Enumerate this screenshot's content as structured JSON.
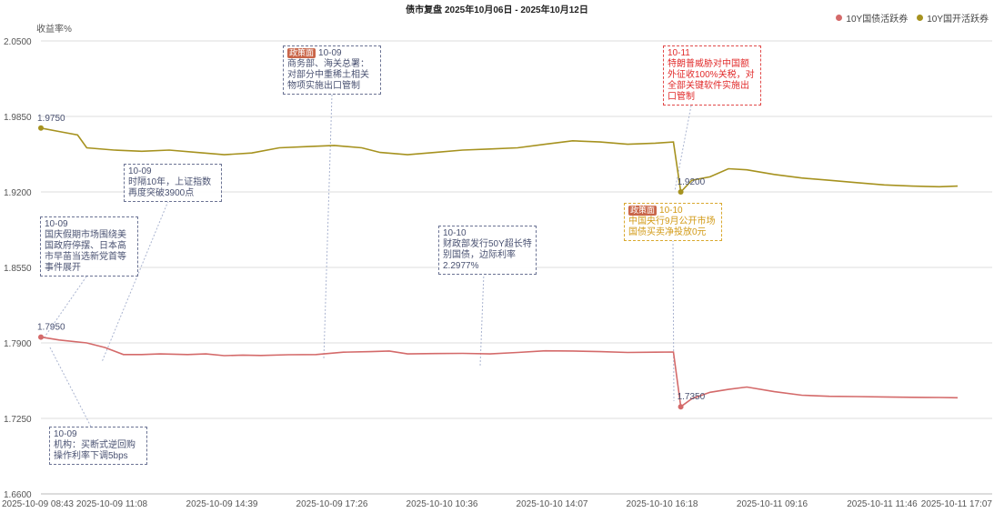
{
  "chart_data": {
    "type": "line",
    "title": "债市复盘 2025年10月06日 - 2025年10月12日",
    "ylabel": "收益率%",
    "ylim": [
      1.66,
      2.05
    ],
    "yticks": [
      "2.0500",
      "1.9850",
      "1.9200",
      "1.8550",
      "1.7900",
      "1.7250",
      "1.6600"
    ],
    "ytick_values": [
      2.05,
      1.985,
      1.92,
      1.855,
      1.79,
      1.725,
      1.66
    ],
    "xtick_labels": [
      "2025-10-09 08:43",
      "2025-10-09 11:08",
      "2025-10-09 14:39",
      "2025-10-09 17:26",
      "2025-10-10 10:36",
      "2025-10-10 14:07",
      "2025-10-10 16:18",
      "2025-10-11 09:16",
      "2025-10-11 11:46",
      "2025-10-11 17:07"
    ],
    "grid": true,
    "legend_position": "top-right",
    "series": [
      {
        "name": "10Y国债活跃券",
        "color": "#d46a6a",
        "values": [
          [
            0.0,
            1.795
          ],
          [
            0.02,
            1.7925
          ],
          [
            0.05,
            1.79
          ],
          [
            0.07,
            1.786
          ],
          [
            0.09,
            1.78
          ],
          [
            0.11,
            1.78
          ],
          [
            0.13,
            1.7805
          ],
          [
            0.16,
            1.78
          ],
          [
            0.18,
            1.7805
          ],
          [
            0.2,
            1.779
          ],
          [
            0.22,
            1.7795
          ],
          [
            0.24,
            1.7792
          ],
          [
            0.27,
            1.7798
          ],
          [
            0.3,
            1.78
          ],
          [
            0.33,
            1.782
          ],
          [
            0.36,
            1.7825
          ],
          [
            0.38,
            1.783
          ],
          [
            0.4,
            1.7805
          ],
          [
            0.43,
            1.7808
          ],
          [
            0.46,
            1.781
          ],
          [
            0.49,
            1.7805
          ],
          [
            0.52,
            1.7818
          ],
          [
            0.55,
            1.7832
          ],
          [
            0.58,
            1.783
          ],
          [
            0.61,
            1.7825
          ],
          [
            0.64,
            1.7818
          ],
          [
            0.67,
            1.782
          ],
          [
            0.69,
            1.7822
          ],
          [
            0.698,
            1.735
          ],
          [
            0.71,
            1.742
          ],
          [
            0.73,
            1.7475
          ],
          [
            0.75,
            1.75
          ],
          [
            0.77,
            1.752
          ],
          [
            0.8,
            1.748
          ],
          [
            0.83,
            1.745
          ],
          [
            0.86,
            1.744
          ],
          [
            0.89,
            1.7438
          ],
          [
            0.92,
            1.7435
          ],
          [
            0.95,
            1.7432
          ],
          [
            0.98,
            1.743
          ],
          [
            1.0,
            1.7428
          ]
        ]
      },
      {
        "name": "10Y国开活跃券",
        "color": "#a6921f",
        "values": [
          [
            0.0,
            1.975
          ],
          [
            0.02,
            1.972
          ],
          [
            0.04,
            1.969
          ],
          [
            0.05,
            1.958
          ],
          [
            0.08,
            1.956
          ],
          [
            0.11,
            1.955
          ],
          [
            0.14,
            1.956
          ],
          [
            0.17,
            1.954
          ],
          [
            0.2,
            1.952
          ],
          [
            0.23,
            1.9535
          ],
          [
            0.26,
            1.958
          ],
          [
            0.29,
            1.959
          ],
          [
            0.32,
            1.96
          ],
          [
            0.35,
            1.958
          ],
          [
            0.37,
            1.954
          ],
          [
            0.4,
            1.952
          ],
          [
            0.43,
            1.954
          ],
          [
            0.46,
            1.956
          ],
          [
            0.49,
            1.957
          ],
          [
            0.52,
            1.958
          ],
          [
            0.55,
            1.961
          ],
          [
            0.58,
            1.964
          ],
          [
            0.61,
            1.963
          ],
          [
            0.64,
            1.961
          ],
          [
            0.67,
            1.962
          ],
          [
            0.69,
            1.963
          ],
          [
            0.698,
            1.92
          ],
          [
            0.71,
            1.93
          ],
          [
            0.73,
            1.933
          ],
          [
            0.75,
            1.94
          ],
          [
            0.77,
            1.939
          ],
          [
            0.8,
            1.935
          ],
          [
            0.83,
            1.932
          ],
          [
            0.86,
            1.93
          ],
          [
            0.89,
            1.928
          ],
          [
            0.92,
            1.926
          ],
          [
            0.95,
            1.925
          ],
          [
            0.98,
            1.9245
          ],
          [
            1.0,
            1.925
          ]
        ]
      }
    ],
    "point_labels": [
      {
        "series": 0,
        "index": 0,
        "text": "1.7950"
      },
      {
        "series": 0,
        "index": 28,
        "text": "1.7350"
      },
      {
        "series": 1,
        "index": 0,
        "text": "1.9750"
      },
      {
        "series": 1,
        "index": 26,
        "text": "1.9200"
      }
    ],
    "annotations": [
      {
        "date": "10-09",
        "text": "国庆假期市场围绕美国政府停摆、日本高市早苗当选新党首等事件展开",
        "style": "default",
        "tag": ""
      },
      {
        "date": "10-09",
        "text": "时隔10年，上证指数再度突破3900点",
        "style": "default",
        "tag": ""
      },
      {
        "date": "10-09",
        "text": "商务部、海关总署：对部分中重稀土相关物项实施出口管制",
        "style": "default",
        "tag": "政策面"
      },
      {
        "date": "10-09",
        "text": "机构：买断式逆回购操作利率下调5bps",
        "style": "default",
        "tag": ""
      },
      {
        "date": "10-10",
        "text": "财政部发行50Y超长特别国债，边际利率2.2977%",
        "style": "default",
        "tag": ""
      },
      {
        "date": "10-11",
        "text": "特朗普威胁对中国额外征收100%关税，对全部关键软件实施出口管制",
        "style": "red",
        "tag": ""
      },
      {
        "date": "10-10",
        "text": "中国央行9月公开市场国债买卖净投放0元",
        "style": "gold",
        "tag": "政策面"
      }
    ]
  }
}
